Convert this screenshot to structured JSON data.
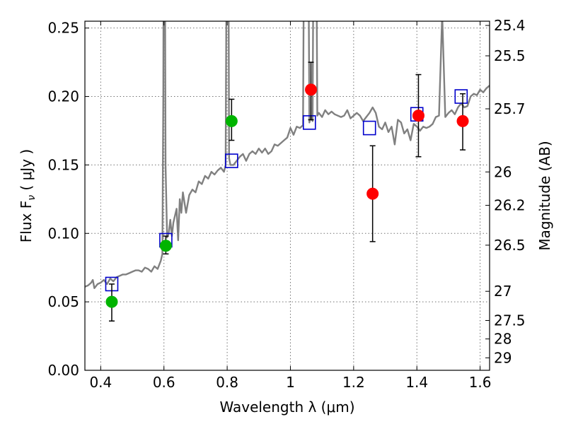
{
  "chart_data": {
    "type": "scatter",
    "xlabel": "Wavelength  λ (μm)",
    "ylabel_left": "Flux  F",
    "ylabel_left_sub": "ν",
    "ylabel_left_unit": "( μJy )",
    "ylabel_right": "Magnitude (AB)",
    "xlim": [
      0.35,
      1.63
    ],
    "ylim": [
      0.0,
      0.255
    ],
    "x_ticks": [
      "0.4",
      "0.6",
      "0.8",
      "1",
      "1.2",
      "1.4",
      "1.6"
    ],
    "x_tick_values": [
      0.4,
      0.6,
      0.8,
      1.0,
      1.2,
      1.4,
      1.6
    ],
    "y_ticks": [
      "0.00",
      "0.05",
      "0.10",
      "0.15",
      "0.20",
      "0.25"
    ],
    "y_tick_values": [
      0.0,
      0.05,
      0.1,
      0.15,
      0.2,
      0.25
    ],
    "right_ticks": [
      {
        "label": "25.4",
        "flux": 0.2519
      },
      {
        "label": "25.5",
        "flux": 0.2297
      },
      {
        "label": "25.7",
        "flux": 0.191
      },
      {
        "label": "26",
        "flux": 0.1449
      },
      {
        "label": "26.2",
        "flux": 0.1205
      },
      {
        "label": "26.5",
        "flux": 0.0914
      },
      {
        "label": "27",
        "flux": 0.0577
      },
      {
        "label": "27.5",
        "flux": 0.0364
      },
      {
        "label": "28",
        "flux": 0.0229
      },
      {
        "label": "29",
        "flux": 0.0091
      }
    ],
    "grid": true,
    "series": [
      {
        "kind": "spectrum",
        "color": "#808080",
        "x": [
          0.35,
          0.36,
          0.37,
          0.375,
          0.38,
          0.39,
          0.4,
          0.41,
          0.42,
          0.43,
          0.44,
          0.45,
          0.46,
          0.47,
          0.48,
          0.49,
          0.5,
          0.51,
          0.52,
          0.53,
          0.54,
          0.55,
          0.56,
          0.57,
          0.58,
          0.59,
          0.595,
          0.598,
          0.6,
          0.602,
          0.605,
          0.61,
          0.615,
          0.62,
          0.625,
          0.63,
          0.64,
          0.645,
          0.65,
          0.655,
          0.66,
          0.67,
          0.68,
          0.69,
          0.7,
          0.71,
          0.72,
          0.73,
          0.74,
          0.75,
          0.76,
          0.77,
          0.78,
          0.79,
          0.795,
          0.8,
          0.803,
          0.806,
          0.81,
          0.82,
          0.83,
          0.84,
          0.85,
          0.86,
          0.87,
          0.88,
          0.89,
          0.9,
          0.91,
          0.92,
          0.93,
          0.94,
          0.95,
          0.96,
          0.97,
          0.98,
          0.99,
          1.0,
          1.01,
          1.02,
          1.03,
          1.04,
          1.045,
          1.05,
          1.055,
          1.06,
          1.065,
          1.07,
          1.075,
          1.08,
          1.085,
          1.09,
          1.1,
          1.11,
          1.12,
          1.13,
          1.14,
          1.15,
          1.16,
          1.17,
          1.18,
          1.19,
          1.2,
          1.21,
          1.22,
          1.23,
          1.24,
          1.25,
          1.26,
          1.27,
          1.28,
          1.29,
          1.3,
          1.31,
          1.32,
          1.33,
          1.34,
          1.35,
          1.36,
          1.37,
          1.38,
          1.39,
          1.4,
          1.41,
          1.42,
          1.43,
          1.44,
          1.45,
          1.46,
          1.47,
          1.48,
          1.49,
          1.5,
          1.51,
          1.52,
          1.53,
          1.54,
          1.55,
          1.56,
          1.57,
          1.58,
          1.59,
          1.6,
          1.61,
          1.62,
          1.63
        ],
        "y": [
          0.061,
          0.062,
          0.064,
          0.066,
          0.06,
          0.063,
          0.064,
          0.066,
          0.063,
          0.067,
          0.065,
          0.068,
          0.069,
          0.07,
          0.07,
          0.071,
          0.072,
          0.073,
          0.073,
          0.072,
          0.075,
          0.074,
          0.072,
          0.076,
          0.074,
          0.08,
          0.085,
          0.2,
          0.4,
          0.4,
          0.15,
          0.097,
          0.1,
          0.11,
          0.098,
          0.108,
          0.118,
          0.095,
          0.125,
          0.115,
          0.13,
          0.115,
          0.128,
          0.132,
          0.13,
          0.138,
          0.136,
          0.142,
          0.14,
          0.145,
          0.143,
          0.146,
          0.148,
          0.145,
          0.15,
          0.4,
          0.4,
          0.155,
          0.15,
          0.15,
          0.153,
          0.156,
          0.158,
          0.153,
          0.158,
          0.16,
          0.158,
          0.162,
          0.159,
          0.162,
          0.158,
          0.16,
          0.165,
          0.164,
          0.166,
          0.168,
          0.17,
          0.177,
          0.172,
          0.178,
          0.177,
          0.179,
          0.4,
          0.4,
          0.4,
          0.181,
          0.185,
          0.182,
          0.4,
          0.4,
          0.186,
          0.188,
          0.185,
          0.19,
          0.187,
          0.189,
          0.187,
          0.186,
          0.185,
          0.186,
          0.19,
          0.184,
          0.186,
          0.188,
          0.186,
          0.182,
          0.185,
          0.188,
          0.192,
          0.188,
          0.178,
          0.176,
          0.181,
          0.174,
          0.178,
          0.165,
          0.183,
          0.181,
          0.173,
          0.176,
          0.168,
          0.18,
          0.178,
          0.175,
          0.178,
          0.177,
          0.178,
          0.18,
          0.185,
          0.186,
          0.26,
          0.185,
          0.188,
          0.19,
          0.187,
          0.192,
          0.195,
          0.192,
          0.193,
          0.2,
          0.202,
          0.201,
          0.205,
          0.203,
          0.206,
          0.208
        ]
      },
      {
        "kind": "model-photometry",
        "color": "#0000cc",
        "marker": "open-square",
        "x": [
          0.435,
          0.606,
          0.814,
          1.06,
          1.25,
          1.4,
          1.54
        ],
        "y": [
          0.063,
          0.095,
          0.153,
          0.181,
          0.177,
          0.187,
          0.2
        ]
      },
      {
        "kind": "observed-green",
        "color": "#00b400",
        "marker": "filled-circle",
        "x": [
          0.435,
          0.606,
          0.814
        ],
        "y": [
          0.05,
          0.091,
          0.182
        ],
        "yerr_low": [
          0.036,
          0.085,
          0.168
        ],
        "yerr_high": [
          0.063,
          0.098,
          0.198
        ]
      },
      {
        "kind": "observed-red",
        "color": "#ff0000",
        "marker": "filled-circle",
        "x": [
          1.065,
          1.26,
          1.405,
          1.545
        ],
        "y": [
          0.205,
          0.129,
          0.186,
          0.182
        ],
        "yerr_low": [
          0.183,
          0.094,
          0.156,
          0.161
        ],
        "yerr_high": [
          0.225,
          0.164,
          0.216,
          0.202
        ]
      }
    ]
  }
}
